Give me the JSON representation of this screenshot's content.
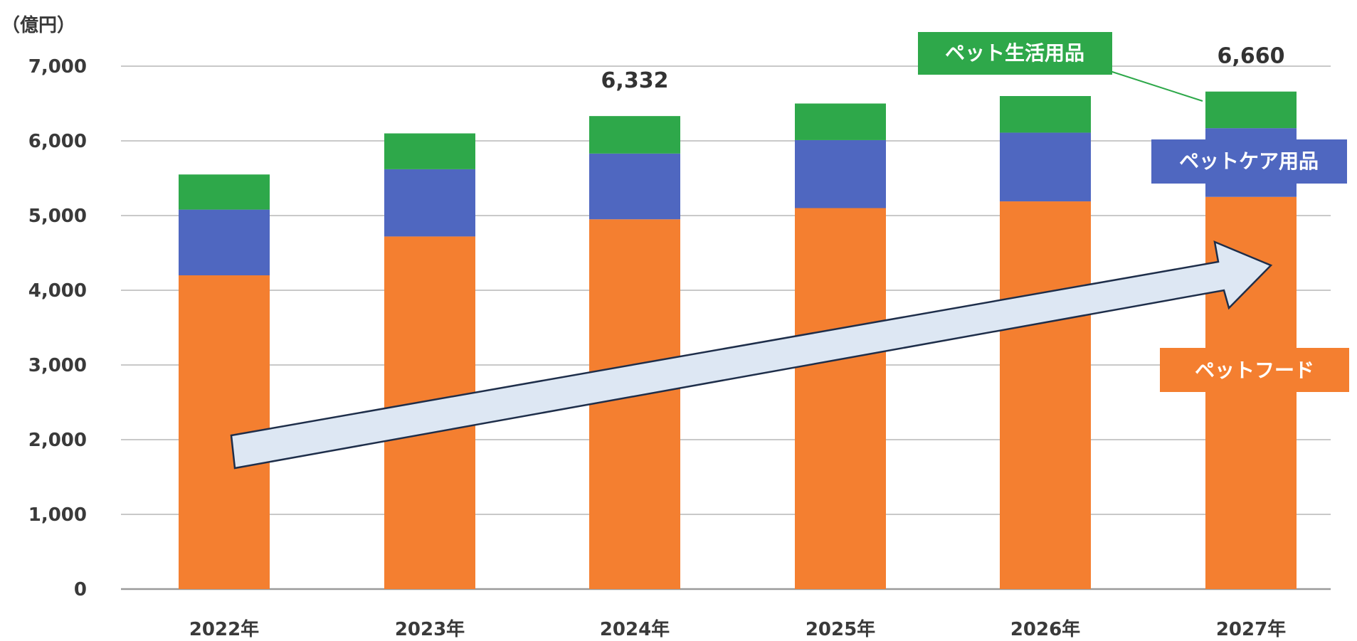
{
  "chart_data": {
    "type": "bar",
    "stacked": true,
    "unit_label": "（億円）",
    "categories": [
      "2022年",
      "2023年",
      "2024年",
      "2025年",
      "2026年",
      "2027年"
    ],
    "series": [
      {
        "name": "ペットフード",
        "color": "#F47F30",
        "values": [
          4200,
          4720,
          4950,
          5100,
          5190,
          5250
        ]
      },
      {
        "name": "ペットケア用品",
        "color": "#4F67C0",
        "values": [
          880,
          900,
          880,
          910,
          920,
          920
        ]
      },
      {
        "name": "ペット生活用品",
        "color": "#2EA84A",
        "values": [
          470,
          480,
          502,
          490,
          490,
          490
        ]
      }
    ],
    "totals": [
      {
        "category": "2024年",
        "label": "6,332"
      },
      {
        "category": "2027年",
        "label": "6,660"
      }
    ],
    "yticks": [
      "0",
      "1,000",
      "2,000",
      "3,000",
      "4,000",
      "5,000",
      "6,000",
      "7,000"
    ],
    "ylim": [
      0,
      7000
    ],
    "grid": true,
    "legend": "inline-labels-right",
    "annotation": "upward-trend-arrow"
  }
}
